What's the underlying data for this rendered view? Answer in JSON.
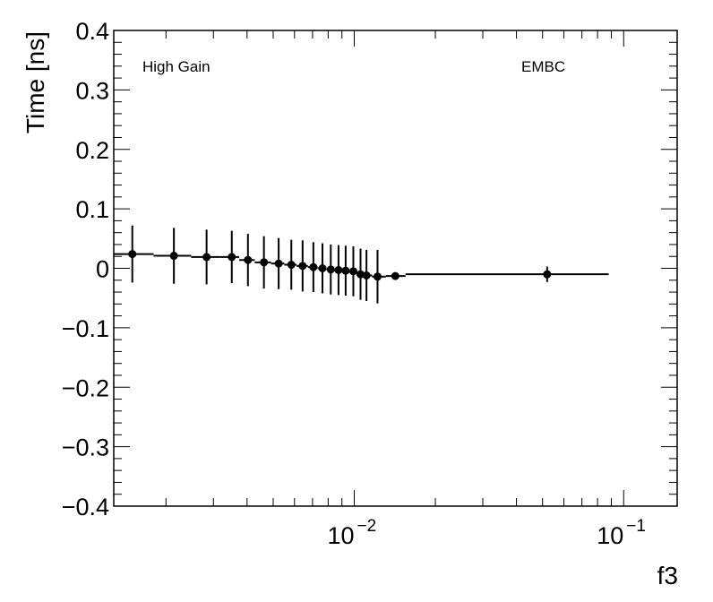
{
  "chart_data": {
    "type": "scatter",
    "xlabel": "f3",
    "ylabel": "Time [ns]",
    "x_scale": "log",
    "xlim": [
      0.00128,
      0.158
    ],
    "ylim": [
      -0.4,
      0.4
    ],
    "x_tick_labels": [
      {
        "base": "10",
        "exp": "−2",
        "value": 0.01
      },
      {
        "base": "10",
        "exp": "−1",
        "value": 0.1
      }
    ],
    "y_ticks": [
      {
        "value": 0.4,
        "label": "0.4"
      },
      {
        "value": 0.3,
        "label": "0.3"
      },
      {
        "value": 0.2,
        "label": "0.2"
      },
      {
        "value": 0.1,
        "label": "0.1"
      },
      {
        "value": 0.0,
        "label": "0"
      },
      {
        "value": -0.1,
        "label": "−0.1"
      },
      {
        "value": -0.2,
        "label": "−0.2"
      },
      {
        "value": -0.3,
        "label": "−0.3"
      },
      {
        "value": -0.4,
        "label": "−0.4"
      }
    ],
    "annotations": {
      "left": "High Gain",
      "right": "EMBC"
    },
    "grid": false,
    "colors": {
      "marker": "#000000",
      "axis": "#000000",
      "background": "#ffffff"
    },
    "series": [
      {
        "points": [
          {
            "x": 0.0015,
            "y": 0.024,
            "err": 0.048,
            "xlo": 0.00128,
            "xhi": 0.0018
          },
          {
            "x": 0.00214,
            "y": 0.021,
            "err": 0.047,
            "xlo": 0.0018,
            "xhi": 0.00248
          },
          {
            "x": 0.00283,
            "y": 0.019,
            "err": 0.046,
            "xlo": 0.00248,
            "xhi": 0.00318
          },
          {
            "x": 0.00351,
            "y": 0.019,
            "err": 0.044,
            "xlo": 0.00318,
            "xhi": 0.00374
          },
          {
            "x": 0.00403,
            "y": 0.014,
            "err": 0.044,
            "xlo": 0.00374,
            "xhi": 0.00427
          },
          {
            "x": 0.00462,
            "y": 0.01,
            "err": 0.044,
            "xlo": 0.00427,
            "xhi": 0.00491
          },
          {
            "x": 0.00524,
            "y": 0.008,
            "err": 0.043,
            "xlo": 0.00491,
            "xhi": 0.0055
          },
          {
            "x": 0.00584,
            "y": 0.006,
            "err": 0.042,
            "xlo": 0.0055,
            "xhi": 0.00611
          },
          {
            "x": 0.00643,
            "y": 0.004,
            "err": 0.043,
            "xlo": 0.00611,
            "xhi": 0.00673
          },
          {
            "x": 0.00705,
            "y": 0.002,
            "err": 0.042,
            "xlo": 0.00673,
            "xhi": 0.00731
          },
          {
            "x": 0.00762,
            "y": 0.0,
            "err": 0.042,
            "xlo": 0.00731,
            "xhi": 0.00789
          },
          {
            "x": 0.00818,
            "y": -0.002,
            "err": 0.042,
            "xlo": 0.00789,
            "xhi": 0.00844
          },
          {
            "x": 0.00874,
            "y": -0.003,
            "err": 0.042,
            "xlo": 0.00844,
            "xhi": 0.00899
          },
          {
            "x": 0.00929,
            "y": -0.004,
            "err": 0.042,
            "xlo": 0.00899,
            "xhi": 0.00959
          },
          {
            "x": 0.00992,
            "y": -0.005,
            "err": 0.042,
            "xlo": 0.00959,
            "xhi": 0.01023
          },
          {
            "x": 0.01055,
            "y": -0.01,
            "err": 0.043,
            "xlo": 0.01023,
            "xhi": 0.0108
          },
          {
            "x": 0.0111,
            "y": -0.012,
            "err": 0.043,
            "xlo": 0.0108,
            "xhi": 0.01165
          },
          {
            "x": 0.0122,
            "y": -0.014,
            "err": 0.045,
            "xlo": 0.01165,
            "xhi": 0.0131
          },
          {
            "x": 0.0142,
            "y": -0.013,
            "err": 0.0,
            "xlo": 0.0131,
            "xhi": 0.0155
          },
          {
            "x": 0.052,
            "y": -0.01,
            "err": 0.013,
            "xlo": 0.0155,
            "xhi": 0.088
          }
        ]
      }
    ]
  }
}
